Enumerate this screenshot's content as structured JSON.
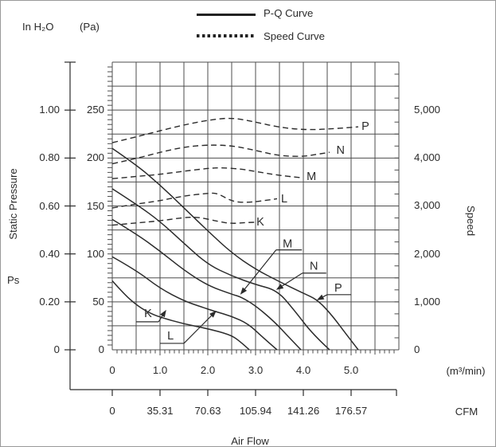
{
  "header": {
    "left_unit": "In H₂O",
    "pa_unit": "(Pa)"
  },
  "legend": {
    "pq_label": "P-Q Curve",
    "speed_label": "Speed Curve"
  },
  "axes": {
    "pressure_title": "Static Pressure",
    "pressure_symbol": "Ps",
    "airflow_title": "Air Flow",
    "left_inh2o": {
      "ticks": [
        "1.00",
        "0.80",
        "0.60",
        "0.40",
        "0.20",
        "0"
      ]
    },
    "left_pa": {
      "ticks": [
        "250",
        "200",
        "150",
        "100",
        "50",
        "0"
      ]
    },
    "right_speed": {
      "title": "Speed",
      "ticks": [
        "5,000",
        "4,000",
        "3,000",
        "2,000",
        "1,000",
        "0"
      ]
    },
    "flow": {
      "unit": "(m³/min)",
      "ticks": [
        "0",
        "1.0",
        "2.0",
        "3.0",
        "4.0",
        "5.0"
      ]
    },
    "cfm": {
      "unit": "CFM",
      "ticks": [
        "0",
        "35.31",
        "70.63",
        "105.94",
        "141.26",
        "176.57"
      ]
    }
  },
  "chart_data": {
    "type": "line",
    "title": "Fan P-Q and Speed curves",
    "x_axis": {
      "label": "Air Flow",
      "units": [
        "m³/min",
        "CFM"
      ],
      "m3min_ticks": [
        0,
        1,
        2,
        3,
        4,
        5
      ],
      "cfm_ticks": [
        0,
        35.31,
        70.63,
        105.94,
        141.26,
        176.57
      ],
      "range_m3min": [
        0,
        6
      ],
      "grid_step_m3min": 0.5
    },
    "pressure_axis": {
      "label": "Static Pressure",
      "symbol": "Ps",
      "units": [
        "In H₂O",
        "Pa"
      ],
      "inh2o_ticks": [
        1.0,
        0.8,
        0.6,
        0.4,
        0.2,
        0
      ],
      "pa_ticks": [
        250,
        200,
        150,
        100,
        50,
        0
      ],
      "range_pa": [
        0,
        300
      ],
      "grid_step_pa": 25
    },
    "speed_axis": {
      "label": "Speed",
      "ticks": [
        5000,
        4000,
        3000,
        2000,
        1000,
        0
      ],
      "range_rpm": [
        0,
        6000
      ]
    },
    "pq_curves": [
      {
        "name": "K",
        "points_flow_pa": [
          [
            0,
            72
          ],
          [
            0.25,
            58
          ],
          [
            0.5,
            47
          ],
          [
            0.75,
            39
          ],
          [
            1,
            34
          ],
          [
            1.5,
            27
          ],
          [
            2,
            22
          ],
          [
            2.45,
            16
          ],
          [
            2.65,
            10
          ],
          [
            2.87,
            0
          ]
        ]
      },
      {
        "name": "L",
        "points_flow_pa": [
          [
            0,
            97
          ],
          [
            0.5,
            83
          ],
          [
            1,
            64
          ],
          [
            1.5,
            51
          ],
          [
            1.85,
            45
          ],
          [
            2.15,
            40
          ],
          [
            2.5,
            35
          ],
          [
            2.85,
            27
          ],
          [
            3.15,
            13
          ],
          [
            3.45,
            0
          ]
        ]
      },
      {
        "name": "M",
        "points_flow_pa": [
          [
            0,
            136
          ],
          [
            0.5,
            121
          ],
          [
            1,
            103
          ],
          [
            1.5,
            83
          ],
          [
            2,
            67
          ],
          [
            2.5,
            58
          ],
          [
            2.7,
            55
          ],
          [
            3,
            46
          ],
          [
            3.4,
            29
          ],
          [
            3.7,
            13
          ],
          [
            3.95,
            0
          ]
        ]
      },
      {
        "name": "N",
        "points_flow_pa": [
          [
            0,
            168
          ],
          [
            0.5,
            152
          ],
          [
            1,
            134
          ],
          [
            1.5,
            111
          ],
          [
            2,
            89
          ],
          [
            2.5,
            77
          ],
          [
            3,
            68
          ],
          [
            3.45,
            62
          ],
          [
            3.8,
            42
          ],
          [
            4.2,
            16
          ],
          [
            4.55,
            0
          ]
        ]
      },
      {
        "name": "P",
        "points_flow_pa": [
          [
            0,
            210
          ],
          [
            0.5,
            193
          ],
          [
            1,
            172
          ],
          [
            1.5,
            148
          ],
          [
            2,
            124
          ],
          [
            2.5,
            101
          ],
          [
            3,
            84
          ],
          [
            3.5,
            71
          ],
          [
            4,
            59
          ],
          [
            4.3,
            52
          ],
          [
            4.6,
            36
          ],
          [
            4.9,
            16
          ],
          [
            5.15,
            0
          ]
        ]
      }
    ],
    "speed_curves": [
      {
        "name": "K",
        "label_at": [
          3.1,
          2675
        ],
        "points_flow_rpm": [
          [
            0,
            2600
          ],
          [
            0.5,
            2645
          ],
          [
            1,
            2690
          ],
          [
            1.5,
            2760
          ],
          [
            1.8,
            2770
          ],
          [
            2.2,
            2680
          ],
          [
            2.5,
            2630
          ],
          [
            2.8,
            2655
          ],
          [
            3,
            2660
          ]
        ]
      },
      {
        "name": "L",
        "label_at": [
          3.6,
          3155
        ],
        "points_flow_rpm": [
          [
            0,
            2960
          ],
          [
            0.5,
            3040
          ],
          [
            1,
            3110
          ],
          [
            1.5,
            3210
          ],
          [
            2,
            3265
          ],
          [
            2.2,
            3270
          ],
          [
            2.5,
            3095
          ],
          [
            2.8,
            3070
          ],
          [
            3.1,
            3100
          ],
          [
            3.45,
            3150
          ]
        ]
      },
      {
        "name": "M",
        "label_at": [
          4.17,
          3620
        ],
        "points_flow_rpm": [
          [
            0,
            3570
          ],
          [
            0.5,
            3615
          ],
          [
            1,
            3660
          ],
          [
            1.5,
            3725
          ],
          [
            2,
            3785
          ],
          [
            2.3,
            3800
          ],
          [
            2.7,
            3770
          ],
          [
            3,
            3720
          ],
          [
            3.5,
            3635
          ],
          [
            3.95,
            3590
          ]
        ]
      },
      {
        "name": "N",
        "label_at": [
          4.78,
          4170
        ],
        "points_flow_rpm": [
          [
            0,
            3880
          ],
          [
            0.5,
            3990
          ],
          [
            1,
            4120
          ],
          [
            1.5,
            4230
          ],
          [
            2,
            4275
          ],
          [
            2.5,
            4260
          ],
          [
            3,
            4160
          ],
          [
            3.5,
            4045
          ],
          [
            4,
            4030
          ],
          [
            4.3,
            4080
          ],
          [
            4.55,
            4120
          ]
        ]
      },
      {
        "name": "P",
        "label_at": [
          5.3,
          4668
        ],
        "points_flow_rpm": [
          [
            0,
            4320
          ],
          [
            0.5,
            4440
          ],
          [
            1,
            4570
          ],
          [
            1.5,
            4690
          ],
          [
            2,
            4790
          ],
          [
            2.5,
            4845
          ],
          [
            3,
            4750
          ],
          [
            3.5,
            4640
          ],
          [
            4,
            4590
          ],
          [
            4.5,
            4600
          ],
          [
            5.15,
            4650
          ]
        ]
      }
    ],
    "callouts": [
      {
        "name": "K",
        "letter_at": [
          0.75,
          38.3
        ],
        "underline": [
          0.5,
          0.97,
          29.2
        ],
        "leader": [
          [
            0.97,
            29.2
          ],
          [
            1.13,
            41.7
          ]
        ]
      },
      {
        "name": "L",
        "letter_at": [
          1.22,
          15
        ],
        "underline": [
          1.0,
          1.5,
          6.7
        ],
        "leader": [
          [
            1.5,
            6.7
          ],
          [
            2.18,
            40.8
          ]
        ]
      },
      {
        "name": "M",
        "letter_at": [
          3.67,
          110.8
        ],
        "underline": [
          3.43,
          3.97,
          104.2
        ],
        "leader": [
          [
            3.43,
            104.2
          ],
          [
            2.68,
            57.5
          ]
        ]
      },
      {
        "name": "N",
        "letter_at": [
          4.22,
          87.5
        ],
        "underline": [
          3.98,
          4.48,
          80
        ],
        "leader": [
          [
            3.98,
            80
          ],
          [
            3.43,
            62.5
          ]
        ]
      },
      {
        "name": "P",
        "letter_at": [
          4.73,
          65
        ],
        "underline": [
          4.5,
          5.0,
          57.5
        ],
        "leader": [
          [
            4.5,
            57.5
          ],
          [
            4.28,
            51.7
          ]
        ]
      }
    ],
    "colors": {
      "ink": "#2b2b2b",
      "grid": "#4d4d4d"
    },
    "legend_position": "top-right",
    "grid": true
  }
}
